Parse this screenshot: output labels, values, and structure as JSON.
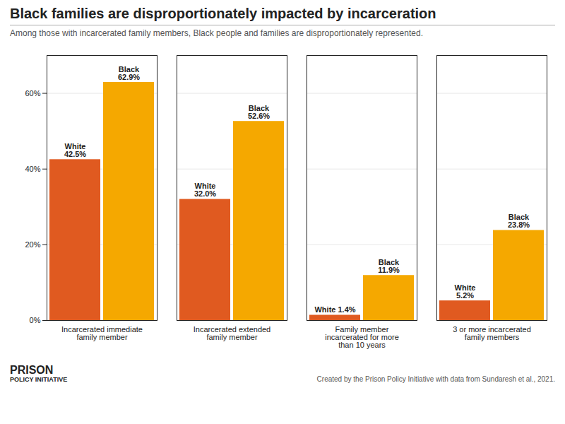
{
  "chart_data": {
    "type": "bar",
    "title": "Black families are disproportionately impacted by incarceration",
    "subtitle": "Among those with incarcerated family members, Black people and families are disproportionately represented.",
    "annotations": [
      "PRISON",
      "POLICY INITIATIVE",
      "Created by the Prison Policy Initiative with data from Sundaresh et al., 2021."
    ],
    "categories": [
      "Incarcerated immediate\nfamily member",
      "Incarcerated extended\nfamily member",
      "Family member\nincarcerated for more\nthan 10 years",
      "3 or more incarcerated\nfamily members"
    ],
    "series": [
      {
        "name": "White",
        "color": "#e05a20",
        "values": [
          42.5,
          32.0,
          1.4,
          5.2
        ],
        "value_labels": [
          "White\n42.5%",
          "White\n32.0%",
          "White 1.4%",
          "White\n5.2%"
        ]
      },
      {
        "name": "Black",
        "color": "#f5a800",
        "values": [
          62.9,
          52.6,
          11.9,
          23.8
        ],
        "value_labels": [
          "Black\n62.9%",
          "Black\n52.6%",
          "Black\n11.9%",
          "Black\n23.8%"
        ]
      }
    ],
    "ylim": [
      0,
      70
    ],
    "yticks": [
      {
        "value": 0,
        "label": "0%"
      },
      {
        "value": 20,
        "label": "20%"
      },
      {
        "value": 40,
        "label": "40%"
      },
      {
        "value": 60,
        "label": "60%"
      }
    ],
    "grid": true,
    "data_labels": true
  }
}
